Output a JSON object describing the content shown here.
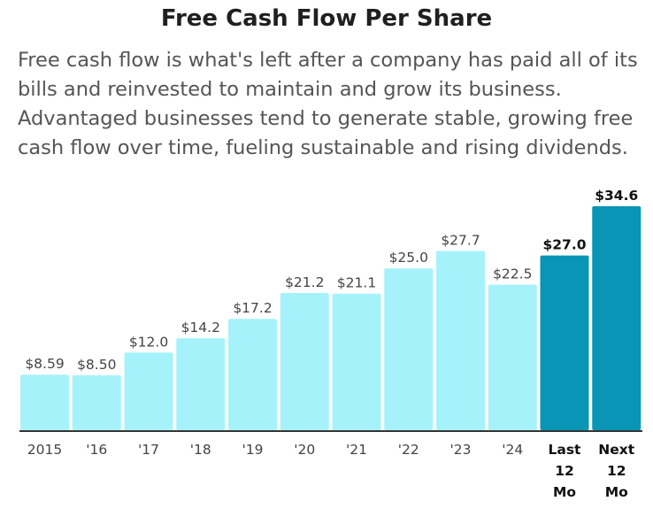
{
  "header": {
    "title": "Free Cash Flow Per Share",
    "description": "Free cash flow is what's left after a company has paid all of its bills and reinvested to maintain and grow its business. Advantaged businesses tend to generate stable, growing free cash flow over time, fueling sustainable and rising dividends."
  },
  "colors": {
    "bar": "#a6f2fb",
    "bar_highlight": "#0895b6",
    "axis": "#333333"
  },
  "chart_data": {
    "type": "bar",
    "title": "Free Cash Flow Per Share",
    "categories": [
      [
        "2015"
      ],
      [
        "'16"
      ],
      [
        "'17"
      ],
      [
        "'18"
      ],
      [
        "'19"
      ],
      [
        "'20"
      ],
      [
        "'21"
      ],
      [
        "'22"
      ],
      [
        "'23"
      ],
      [
        "'24"
      ],
      [
        "Last",
        "12",
        "Mo"
      ],
      [
        "Next",
        "12",
        "Mo"
      ]
    ],
    "values": [
      8.59,
      8.5,
      12.0,
      14.2,
      17.2,
      21.2,
      21.1,
      25.0,
      27.7,
      22.5,
      27.0,
      34.6
    ],
    "labels": [
      "$8.59",
      "$8.50",
      "$12.0",
      "$14.2",
      "$17.2",
      "$21.2",
      "$21.1",
      "$25.0",
      "$27.7",
      "$22.5",
      "$27.0",
      "$34.6"
    ],
    "highlighted": [
      false,
      false,
      false,
      false,
      false,
      false,
      false,
      false,
      false,
      false,
      true,
      true
    ],
    "ylim": [
      0,
      34.6
    ],
    "xlabel": "",
    "ylabel": "",
    "grid": false
  }
}
